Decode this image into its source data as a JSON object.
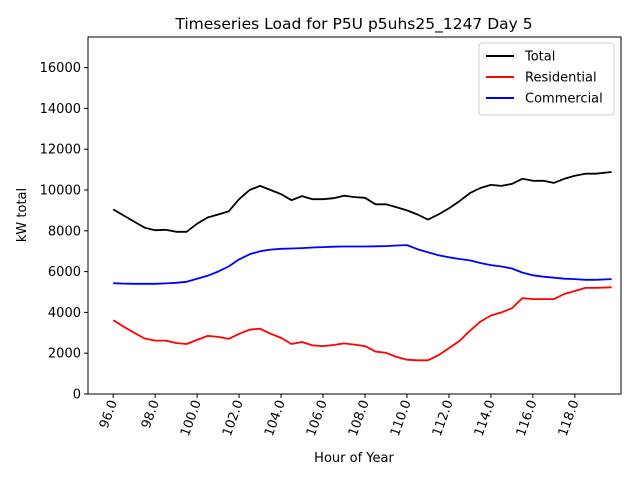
{
  "chart_data": {
    "type": "line",
    "title": "Timeseries Load for P5U p5uhs25_1247  Day 5",
    "xlabel": "Hour of Year",
    "ylabel": "kW total",
    "xlim": [
      94.8,
      120.2
    ],
    "ylim": [
      0,
      17500
    ],
    "x_ticks": [
      96,
      98,
      100,
      102,
      104,
      106,
      108,
      110,
      112,
      114,
      116,
      118
    ],
    "x_tick_labels": [
      "96.0",
      "98.0",
      "100.0",
      "102.0",
      "104.0",
      "106.0",
      "108.0",
      "110.0",
      "112.0",
      "114.0",
      "116.0",
      "118.0"
    ],
    "y_ticks": [
      0,
      2000,
      4000,
      6000,
      8000,
      10000,
      12000,
      14000,
      16000
    ],
    "y_tick_labels": [
      "0",
      "2000",
      "4000",
      "6000",
      "8000",
      "10000",
      "12000",
      "14000",
      "16000"
    ],
    "legend_position": "top-right",
    "x": [
      96.0,
      96.5,
      97.0,
      97.5,
      98.0,
      98.5,
      99.0,
      99.5,
      100.0,
      100.5,
      101.0,
      101.5,
      102.0,
      102.5,
      103.0,
      103.5,
      104.0,
      104.5,
      105.0,
      105.5,
      106.0,
      106.5,
      107.0,
      107.5,
      108.0,
      108.5,
      109.0,
      109.5,
      110.0,
      110.5,
      111.0,
      111.5,
      112.0,
      112.5,
      113.0,
      113.5,
      114.0,
      114.5,
      115.0,
      115.5,
      116.0,
      116.5,
      117.0,
      117.5,
      118.0,
      118.5,
      119.0,
      119.75
    ],
    "series": [
      {
        "name": "Total",
        "color": "#000000",
        "values": [
          9050,
          8750,
          8450,
          8150,
          8030,
          8050,
          7950,
          7950,
          8350,
          8650,
          8800,
          8950,
          9550,
          10000,
          10200,
          10000,
          9800,
          9500,
          9700,
          9550,
          9550,
          9600,
          9720,
          9650,
          9620,
          9300,
          9300,
          9150,
          9000,
          8800,
          8550,
          8800,
          9100,
          9450,
          9850,
          10100,
          10250,
          10200,
          10300,
          10550,
          10450,
          10450,
          10350,
          10550,
          10700,
          10800,
          10800,
          10880
        ]
      },
      {
        "name": "Residential",
        "color": "#ff0000",
        "values": [
          3620,
          3300,
          3000,
          2720,
          2620,
          2620,
          2500,
          2450,
          2650,
          2850,
          2800,
          2700,
          2950,
          3150,
          3200,
          2950,
          2750,
          2450,
          2550,
          2380,
          2350,
          2400,
          2480,
          2420,
          2350,
          2080,
          2020,
          1820,
          1680,
          1650,
          1650,
          1900,
          2250,
          2600,
          3100,
          3550,
          3850,
          4000,
          4200,
          4700,
          4650,
          4650,
          4650,
          4900,
          5050,
          5200,
          5200,
          5230
        ]
      },
      {
        "name": "Commercial",
        "color": "#0000ff",
        "values": [
          5430,
          5410,
          5400,
          5400,
          5400,
          5420,
          5450,
          5500,
          5650,
          5800,
          6000,
          6250,
          6600,
          6850,
          7000,
          7080,
          7120,
          7130,
          7150,
          7180,
          7200,
          7220,
          7230,
          7230,
          7230,
          7240,
          7250,
          7280,
          7300,
          7100,
          6950,
          6800,
          6700,
          6620,
          6550,
          6420,
          6320,
          6250,
          6150,
          5950,
          5820,
          5750,
          5700,
          5650,
          5630,
          5600,
          5600,
          5630
        ]
      }
    ]
  }
}
